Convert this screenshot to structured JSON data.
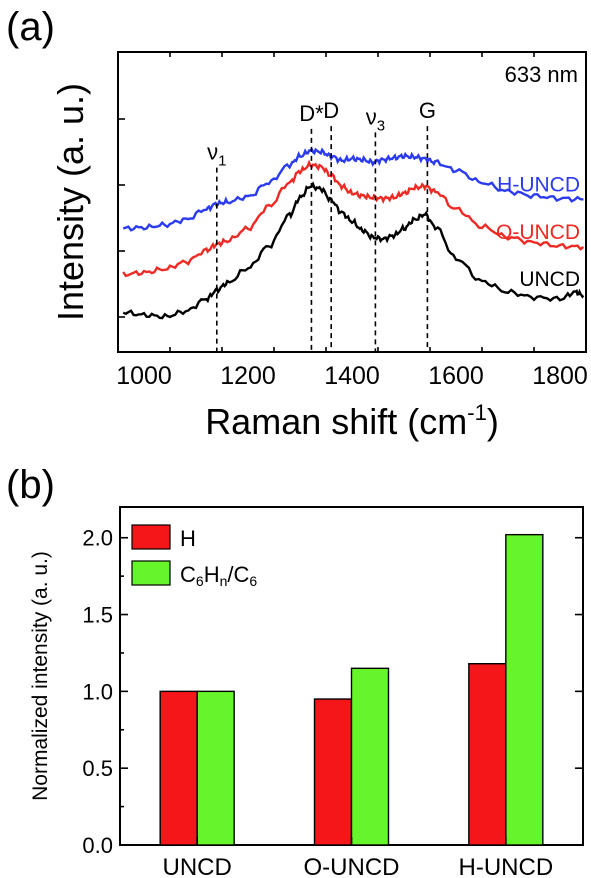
{
  "chart_data": [
    {
      "panel_label": "(a)",
      "type": "line",
      "xlabel": "Raman shift (cm",
      "xlabel_sup": "-1",
      "xlabel_close": ")",
      "ylabel": "Intensity (a. u.)",
      "xlim": [
        950,
        1850
      ],
      "xticks": [
        1000,
        1200,
        1400,
        1600,
        1800
      ],
      "wavelength_label": "633 nm",
      "markers": [
        {
          "label": "ν",
          "sub": "1",
          "x": 1140,
          "label_y": 1.98
        },
        {
          "label": "D*",
          "sub": "",
          "x": 1322,
          "label_y": 2.42
        },
        {
          "label": "D",
          "sub": "",
          "x": 1360,
          "label_y": 2.45
        },
        {
          "label": "ν",
          "sub": "3",
          "x": 1445,
          "label_y": 2.38
        },
        {
          "label": "G",
          "sub": "",
          "x": 1545,
          "label_y": 2.45
        }
      ],
      "series": [
        {
          "name": "H-UNCD",
          "color": "#2b3bf0",
          "x": [
            960,
            1000,
            1040,
            1080,
            1120,
            1140,
            1160,
            1200,
            1240,
            1280,
            1300,
            1320,
            1340,
            1360,
            1380,
            1400,
            1420,
            1440,
            1460,
            1480,
            1500,
            1520,
            1540,
            1560,
            1600,
            1650,
            1700,
            1750,
            1800,
            1845
          ],
          "y": [
            1.2,
            1.21,
            1.24,
            1.3,
            1.42,
            1.48,
            1.5,
            1.56,
            1.72,
            1.92,
            2.02,
            2.08,
            2.07,
            2.02,
            1.97,
            1.99,
            1.98,
            1.95,
            1.98,
            2.0,
            2.02,
            2.01,
            1.99,
            1.95,
            1.86,
            1.72,
            1.62,
            1.57,
            1.54,
            1.53
          ]
        },
        {
          "name": "O-UNCD",
          "color": "#ee2a24",
          "x": [
            960,
            1000,
            1040,
            1080,
            1120,
            1140,
            1160,
            1200,
            1240,
            1280,
            1300,
            1320,
            1340,
            1360,
            1380,
            1400,
            1420,
            1440,
            1460,
            1480,
            1500,
            1520,
            1540,
            1560,
            1600,
            1650,
            1700,
            1750,
            1800,
            1845
          ],
          "y": [
            0.68,
            0.7,
            0.74,
            0.82,
            0.95,
            1.02,
            1.06,
            1.2,
            1.45,
            1.72,
            1.85,
            1.92,
            1.9,
            1.8,
            1.68,
            1.6,
            1.57,
            1.55,
            1.54,
            1.55,
            1.6,
            1.66,
            1.68,
            1.62,
            1.42,
            1.22,
            1.1,
            1.04,
            1.0,
            0.99
          ]
        },
        {
          "name": "UNCD",
          "color": "#000000",
          "x": [
            960,
            1000,
            1040,
            1080,
            1120,
            1140,
            1160,
            1200,
            1240,
            1280,
            1300,
            1320,
            1340,
            1360,
            1380,
            1400,
            1420,
            1440,
            1460,
            1480,
            1500,
            1520,
            1540,
            1560,
            1600,
            1650,
            1700,
            1750,
            1800,
            1830,
            1845
          ],
          "y": [
            0.25,
            0.22,
            0.2,
            0.26,
            0.4,
            0.5,
            0.58,
            0.75,
            1.0,
            1.35,
            1.55,
            1.68,
            1.65,
            1.52,
            1.38,
            1.28,
            1.18,
            1.1,
            1.08,
            1.12,
            1.2,
            1.3,
            1.36,
            1.22,
            0.86,
            0.6,
            0.48,
            0.42,
            0.4,
            0.48,
            0.44
          ]
        }
      ],
      "ylim": [
        -0.2,
        3.2
      ]
    },
    {
      "panel_label": "(b)",
      "type": "bar",
      "xlabel": "",
      "ylabel": "Normalized intensity (a. u.)",
      "categories": [
        "UNCD",
        "O-UNCD",
        "H-UNCD"
      ],
      "ylim": [
        0.0,
        2.2
      ],
      "yticks": [
        "0.0",
        "0.5",
        "1.0",
        "1.5",
        "2.0"
      ],
      "legend_position": "top-left",
      "series": [
        {
          "name": "H",
          "color": "#f5161a",
          "values": [
            1.0,
            0.95,
            1.18
          ]
        },
        {
          "name": "C6Hn/C6",
          "name_parts": [
            "C",
            "6",
            "H",
            "n",
            "/C",
            "6"
          ],
          "color": "#66f52a",
          "values": [
            1.0,
            1.15,
            2.02
          ]
        }
      ]
    }
  ]
}
